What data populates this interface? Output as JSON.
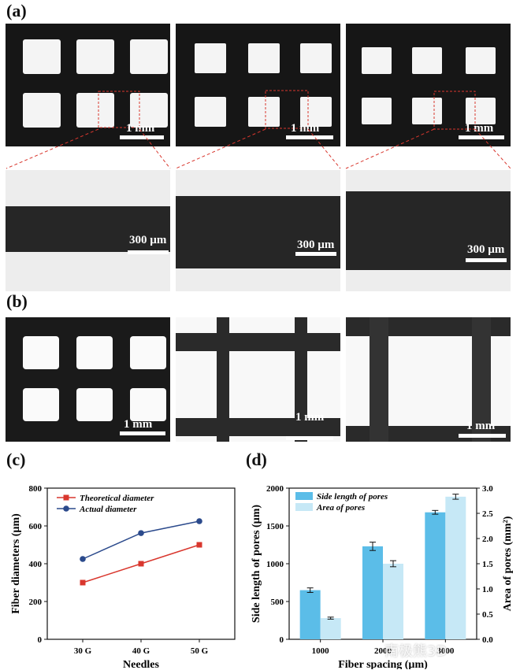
{
  "figure": {
    "panels": {
      "a": "(a)",
      "b": "(b)",
      "c": "(c)",
      "d": "(d)"
    },
    "scale_labels": {
      "a_top": [
        "1 mm",
        "1 mm",
        "1 mm"
      ],
      "a_zoom": [
        "300 µm",
        "300 µm",
        "300 µm"
      ],
      "b": [
        "1 mm",
        "1 mm",
        "1 mm"
      ]
    },
    "watermark": "南极熊3D"
  },
  "chart_data": [
    {
      "type": "line",
      "xlabel": "Needles",
      "ylabel": "Fiber diameters (µm)",
      "categories": [
        "30 G",
        "40 G",
        "50 G"
      ],
      "ylim": [
        0,
        800
      ],
      "yticks": [
        0,
        200,
        400,
        600,
        800
      ],
      "legend_position": "top-left",
      "series": [
        {
          "name": "Theoretical diameter",
          "values": [
            300,
            400,
            500
          ],
          "color": "#d9372e",
          "marker": "square"
        },
        {
          "name": "Actual diameter",
          "values": [
            425,
            562,
            625
          ],
          "errors": [
            10,
            8,
            10
          ],
          "color": "#2b4a8c",
          "marker": "circle"
        }
      ]
    },
    {
      "type": "bar",
      "xlabel": "Fiber spacing (µm)",
      "ylabel": "Side length of pores (µm)",
      "ylabel_right": "Area of pores (mm²)",
      "categories": [
        "1000",
        "2000",
        "3000"
      ],
      "ylim": [
        0,
        2000
      ],
      "yticks": [
        0,
        500,
        1000,
        1500,
        2000
      ],
      "ylim_right": [
        0,
        3.0
      ],
      "yticks_right": [
        "0.0",
        "0.5",
        "1.0",
        "1.5",
        "2.0",
        "2.5",
        "3.0"
      ],
      "legend_position": "top-left",
      "series": [
        {
          "name": "Side length of pores",
          "axis": "left",
          "values": [
            650,
            1230,
            1680
          ],
          "errors": [
            30,
            55,
            25
          ],
          "color": "#5bbde8"
        },
        {
          "name": "Area of pores",
          "axis": "right",
          "values": [
            0.42,
            1.5,
            2.83
          ],
          "errors": [
            0.02,
            0.06,
            0.05
          ],
          "color": "#c6e8f6"
        }
      ]
    }
  ]
}
